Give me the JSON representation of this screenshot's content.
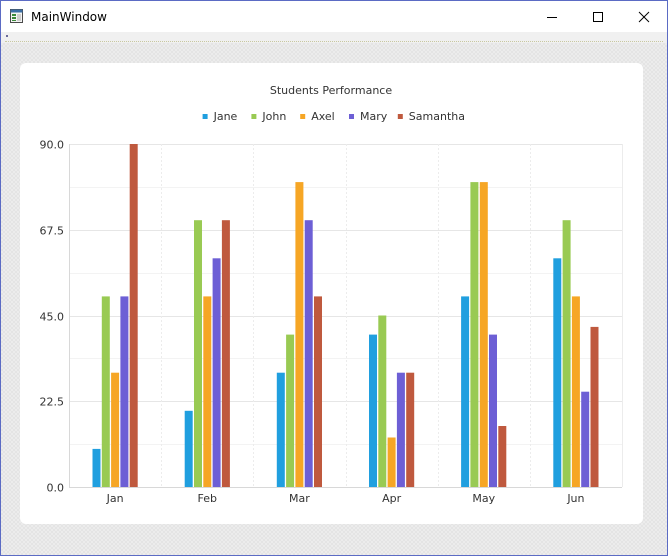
{
  "window": {
    "title": "MainWindow",
    "icon": "application-window-icon",
    "buttons": {
      "minimize": "minimize-icon",
      "maximize": "maximize-icon",
      "close": "close-icon"
    }
  },
  "chart_data": {
    "type": "bar",
    "title": "Students Performance",
    "categories": [
      "Jan",
      "Feb",
      "Mar",
      "Apr",
      "May",
      "Jun"
    ],
    "series": [
      {
        "name": "Jane",
        "color": "#209fdf",
        "values": [
          10,
          20,
          30,
          40,
          50,
          60
        ]
      },
      {
        "name": "John",
        "color": "#99ca53",
        "values": [
          50,
          70,
          40,
          45,
          80,
          70
        ]
      },
      {
        "name": "Axel",
        "color": "#f6a625",
        "values": [
          30,
          50,
          80,
          13,
          80,
          50
        ]
      },
      {
        "name": "Mary",
        "color": "#6d5fd5",
        "values": [
          50,
          60,
          70,
          30,
          40,
          25
        ]
      },
      {
        "name": "Samantha",
        "color": "#bf593e",
        "values": [
          90,
          70,
          50,
          30,
          16,
          42
        ]
      }
    ],
    "y_ticks": [
      "0.0",
      "22.5",
      "45.0",
      "67.5",
      "90.0"
    ],
    "ylim": [
      0,
      90
    ],
    "xlabel": "",
    "ylabel": "",
    "legend": "top",
    "grid": true
  }
}
